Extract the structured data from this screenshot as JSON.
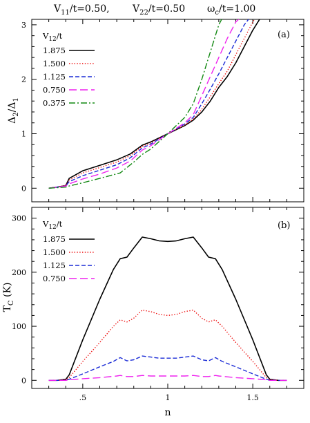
{
  "header": {
    "items": [
      {
        "base": "V",
        "sub": "11",
        "rest": "/t=0.50,"
      },
      {
        "base": "V",
        "sub": "22",
        "rest": "/t=0.50"
      },
      {
        "base": "ω",
        "sub": "c",
        "rest": "/t=1.00"
      }
    ]
  },
  "chart_data": [
    {
      "type": "line",
      "panel_label": "(a)",
      "xlabel": "n",
      "ylabel": {
        "base": "Δ",
        "sub": "2",
        "mid": "/Δ",
        "sub2": "1"
      },
      "xlim": [
        0.2,
        1.8
      ],
      "ylim": [
        -0.25,
        3.1
      ],
      "xticks": [
        0.5,
        1,
        1.5
      ],
      "xtick_labels": [
        ".5",
        "1",
        "1.5"
      ],
      "yticks": [
        0,
        1,
        2,
        3
      ],
      "ytick_labels": [
        "0",
        "1",
        "2",
        "3"
      ],
      "legend": {
        "title": {
          "base": "V",
          "sub": "12",
          "rest": "/t"
        },
        "position": "top-left"
      },
      "series": [
        {
          "name": "1.875",
          "color": "#000000",
          "dash": "solid",
          "x": [
            0.3,
            0.35,
            0.4,
            0.42,
            0.5,
            0.6,
            0.7,
            0.78,
            0.85,
            0.9,
            1.0,
            1.1,
            1.15,
            1.2,
            1.25,
            1.3,
            1.35,
            1.4,
            1.45,
            1.5,
            1.53,
            1.56
          ],
          "y": [
            0.0,
            0.02,
            0.05,
            0.18,
            0.32,
            0.42,
            0.52,
            0.63,
            0.79,
            0.85,
            1.0,
            1.15,
            1.25,
            1.4,
            1.6,
            1.85,
            2.05,
            2.3,
            2.6,
            2.9,
            3.05,
            3.2
          ]
        },
        {
          "name": "1.500",
          "color": "#ee1111",
          "dash": "dotted",
          "x": [
            0.3,
            0.35,
            0.4,
            0.42,
            0.5,
            0.6,
            0.7,
            0.78,
            0.85,
            0.9,
            1.0,
            1.1,
            1.15,
            1.2,
            1.25,
            1.3,
            1.35,
            1.4,
            1.45,
            1.5,
            1.53
          ],
          "y": [
            0.0,
            0.02,
            0.05,
            0.15,
            0.28,
            0.38,
            0.48,
            0.6,
            0.77,
            0.83,
            1.0,
            1.16,
            1.27,
            1.45,
            1.68,
            1.92,
            2.15,
            2.45,
            2.75,
            3.05,
            3.2
          ]
        },
        {
          "name": "1.125",
          "color": "#1a2bd6",
          "dash": "dash",
          "x": [
            0.3,
            0.35,
            0.4,
            0.42,
            0.5,
            0.6,
            0.7,
            0.78,
            0.85,
            0.9,
            1.0,
            1.1,
            1.15,
            1.2,
            1.25,
            1.3,
            1.35,
            1.4,
            1.45,
            1.5
          ],
          "y": [
            0.0,
            0.02,
            0.04,
            0.12,
            0.23,
            0.33,
            0.43,
            0.56,
            0.74,
            0.81,
            1.0,
            1.18,
            1.3,
            1.55,
            1.82,
            2.1,
            2.4,
            2.7,
            3.0,
            3.2
          ]
        },
        {
          "name": "0.750",
          "color": "#ee22ee",
          "dash": "longdash",
          "x": [
            0.3,
            0.35,
            0.4,
            0.42,
            0.5,
            0.6,
            0.7,
            0.78,
            0.85,
            0.9,
            1.0,
            1.1,
            1.15,
            1.2,
            1.25,
            1.3,
            1.35,
            1.4,
            1.45
          ],
          "y": [
            0.0,
            0.02,
            0.04,
            0.08,
            0.17,
            0.26,
            0.37,
            0.5,
            0.7,
            0.78,
            1.0,
            1.2,
            1.35,
            1.7,
            2.05,
            2.4,
            2.75,
            3.05,
            3.2
          ]
        },
        {
          "name": "0.375",
          "color": "#118811",
          "dash": "dashdot",
          "x": [
            0.3,
            0.35,
            0.4,
            0.42,
            0.5,
            0.6,
            0.72,
            0.8,
            0.85,
            0.9,
            1.0,
            1.1,
            1.15,
            1.2,
            1.25,
            1.3,
            1.35
          ],
          "y": [
            0.0,
            0.01,
            0.02,
            0.04,
            0.1,
            0.18,
            0.28,
            0.48,
            0.62,
            0.72,
            1.0,
            1.3,
            1.55,
            2.0,
            2.5,
            3.0,
            3.3
          ]
        }
      ]
    },
    {
      "type": "line",
      "panel_label": "(b)",
      "xlabel": "n",
      "ylabel": {
        "base": "T",
        "sub": "C",
        "rest": " (K)"
      },
      "xlim": [
        0.2,
        1.8
      ],
      "ylim": [
        -15,
        320
      ],
      "xticks": [
        0.5,
        1,
        1.5
      ],
      "xtick_labels": [
        ".5",
        "1",
        "1.5"
      ],
      "yticks": [
        0,
        100,
        200,
        300
      ],
      "ytick_labels": [
        "0",
        "100",
        "200",
        "300"
      ],
      "legend": {
        "title": {
          "base": "V",
          "sub": "12",
          "rest": "/t"
        },
        "position": "top-left"
      },
      "series": [
        {
          "name": "1.875",
          "color": "#000000",
          "dash": "solid",
          "x": [
            0.3,
            0.35,
            0.4,
            0.42,
            0.5,
            0.6,
            0.68,
            0.72,
            0.76,
            0.8,
            0.85,
            0.9,
            0.95,
            1.0,
            1.05,
            1.1,
            1.15,
            1.2,
            1.24,
            1.28,
            1.32,
            1.4,
            1.5,
            1.58,
            1.6,
            1.65,
            1.7
          ],
          "y": [
            0,
            0,
            2,
            10,
            75,
            150,
            205,
            225,
            228,
            245,
            265,
            262,
            258,
            257,
            258,
            262,
            265,
            245,
            228,
            225,
            205,
            150,
            75,
            10,
            2,
            0,
            0
          ]
        },
        {
          "name": "1.500",
          "color": "#ee1111",
          "dash": "dotted",
          "x": [
            0.3,
            0.35,
            0.4,
            0.42,
            0.5,
            0.6,
            0.68,
            0.72,
            0.76,
            0.8,
            0.85,
            0.9,
            0.95,
            1.0,
            1.05,
            1.1,
            1.15,
            1.2,
            1.24,
            1.28,
            1.32,
            1.4,
            1.5,
            1.58,
            1.6,
            1.65,
            1.7
          ],
          "y": [
            0,
            0,
            1,
            5,
            35,
            70,
            100,
            112,
            108,
            115,
            130,
            127,
            122,
            120,
            122,
            127,
            130,
            115,
            108,
            112,
            100,
            70,
            35,
            5,
            1,
            0,
            0
          ]
        },
        {
          "name": "1.125",
          "color": "#1a2bd6",
          "dash": "dash",
          "x": [
            0.3,
            0.35,
            0.4,
            0.42,
            0.5,
            0.6,
            0.68,
            0.72,
            0.76,
            0.8,
            0.85,
            0.9,
            0.95,
            1.0,
            1.05,
            1.1,
            1.15,
            1.2,
            1.24,
            1.28,
            1.32,
            1.4,
            1.5,
            1.58,
            1.6,
            1.65,
            1.7
          ],
          "y": [
            0,
            0,
            0,
            2,
            12,
            25,
            35,
            42,
            36,
            38,
            45,
            43,
            41,
            41,
            41,
            43,
            45,
            38,
            36,
            42,
            35,
            25,
            12,
            2,
            0,
            0,
            0
          ]
        },
        {
          "name": "0.750",
          "color": "#ee22ee",
          "dash": "longdash",
          "x": [
            0.3,
            0.35,
            0.4,
            0.42,
            0.5,
            0.6,
            0.7,
            0.72,
            0.76,
            0.8,
            0.85,
            0.9,
            1.0,
            1.1,
            1.15,
            1.2,
            1.24,
            1.28,
            1.3,
            1.4,
            1.5,
            1.58,
            1.6,
            1.65,
            1.7
          ],
          "y": [
            0,
            0,
            0,
            1,
            3,
            5,
            8,
            9,
            7,
            7,
            9,
            8,
            8,
            8,
            9,
            7,
            7,
            9,
            8,
            5,
            3,
            1,
            0,
            0,
            0
          ]
        }
      ]
    }
  ]
}
